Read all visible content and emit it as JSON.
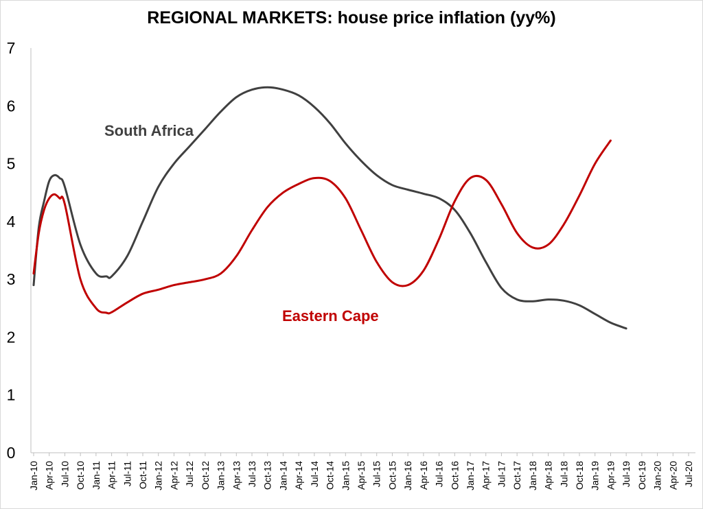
{
  "chart_data": {
    "type": "line",
    "title": "REGIONAL MARKETS: house price inflation (yy%)",
    "xlabel": "",
    "ylabel": "",
    "ylim": [
      0,
      7
    ],
    "yticks": [
      0,
      1,
      2,
      3,
      4,
      5,
      6,
      7
    ],
    "grid": false,
    "categories": [
      "Jan-10",
      "Apr-10",
      "Jul-10",
      "Oct-10",
      "Jan-11",
      "Apr-11",
      "Jul-11",
      "Oct-11",
      "Jan-12",
      "Apr-12",
      "Jul-12",
      "Oct-12",
      "Jan-13",
      "Apr-13",
      "Jul-13",
      "Oct-13",
      "Jan-14",
      "Apr-14",
      "Jul-14",
      "Oct-14",
      "Jan-15",
      "Apr-15",
      "Jul-15",
      "Oct-15",
      "Jan-16",
      "Apr-16",
      "Jul-16",
      "Oct-16",
      "Jan-17",
      "Apr-17",
      "Jul-17",
      "Oct-17",
      "Jan-18",
      "Apr-18",
      "Jul-18",
      "Oct-18",
      "Jan-19",
      "Apr-19",
      "Jul-19",
      "Oct-19",
      "Jan-20",
      "Apr-20",
      "Jul-20"
    ],
    "series": [
      {
        "name": "South Africa",
        "color": "#404040",
        "label_position": "upper-left",
        "points": [
          [
            0,
            2.9
          ],
          [
            0.33,
            3.9
          ],
          [
            0.67,
            4.35
          ],
          [
            1,
            4.7
          ],
          [
            1.33,
            4.8
          ],
          [
            1.67,
            4.75
          ],
          [
            2,
            4.6
          ],
          [
            3,
            3.6
          ],
          [
            4,
            3.1
          ],
          [
            4.67,
            3.05
          ],
          [
            5,
            3.05
          ],
          [
            6,
            3.4
          ],
          [
            7,
            4.0
          ],
          [
            8,
            4.6
          ],
          [
            9,
            5.0
          ],
          [
            10,
            5.3
          ],
          [
            11,
            5.6
          ],
          [
            12,
            5.9
          ],
          [
            13,
            6.15
          ],
          [
            14,
            6.28
          ],
          [
            15,
            6.32
          ],
          [
            16,
            6.28
          ],
          [
            17,
            6.18
          ],
          [
            18,
            5.98
          ],
          [
            19,
            5.7
          ],
          [
            20,
            5.35
          ],
          [
            21,
            5.05
          ],
          [
            22,
            4.8
          ],
          [
            23,
            4.63
          ],
          [
            24,
            4.55
          ],
          [
            25,
            4.48
          ],
          [
            26,
            4.4
          ],
          [
            27,
            4.2
          ],
          [
            28,
            3.8
          ],
          [
            29,
            3.3
          ],
          [
            30,
            2.85
          ],
          [
            31,
            2.65
          ],
          [
            32,
            2.62
          ],
          [
            33,
            2.65
          ],
          [
            34,
            2.63
          ],
          [
            35,
            2.55
          ],
          [
            36,
            2.4
          ],
          [
            37,
            2.25
          ],
          [
            38,
            2.15
          ]
        ]
      },
      {
        "name": "Eastern Cape",
        "color": "#c00000",
        "label_position": "center",
        "points": [
          [
            0,
            3.1
          ],
          [
            0.33,
            3.8
          ],
          [
            0.67,
            4.2
          ],
          [
            1,
            4.4
          ],
          [
            1.33,
            4.47
          ],
          [
            1.67,
            4.4
          ],
          [
            2,
            4.3
          ],
          [
            3,
            3.0
          ],
          [
            4,
            2.5
          ],
          [
            4.67,
            2.42
          ],
          [
            5,
            2.43
          ],
          [
            6,
            2.6
          ],
          [
            7,
            2.75
          ],
          [
            8,
            2.82
          ],
          [
            9,
            2.9
          ],
          [
            10,
            2.95
          ],
          [
            11,
            3.0
          ],
          [
            12,
            3.1
          ],
          [
            13,
            3.4
          ],
          [
            14,
            3.85
          ],
          [
            15,
            4.25
          ],
          [
            16,
            4.5
          ],
          [
            17,
            4.65
          ],
          [
            18,
            4.75
          ],
          [
            19,
            4.7
          ],
          [
            20,
            4.4
          ],
          [
            21,
            3.85
          ],
          [
            22,
            3.3
          ],
          [
            23,
            2.95
          ],
          [
            24,
            2.9
          ],
          [
            25,
            3.15
          ],
          [
            26,
            3.7
          ],
          [
            27,
            4.35
          ],
          [
            28,
            4.75
          ],
          [
            29,
            4.72
          ],
          [
            30,
            4.3
          ],
          [
            31,
            3.8
          ],
          [
            32,
            3.55
          ],
          [
            33,
            3.6
          ],
          [
            34,
            3.95
          ],
          [
            35,
            4.45
          ],
          [
            36,
            5.0
          ],
          [
            37,
            5.4
          ]
        ]
      }
    ]
  }
}
